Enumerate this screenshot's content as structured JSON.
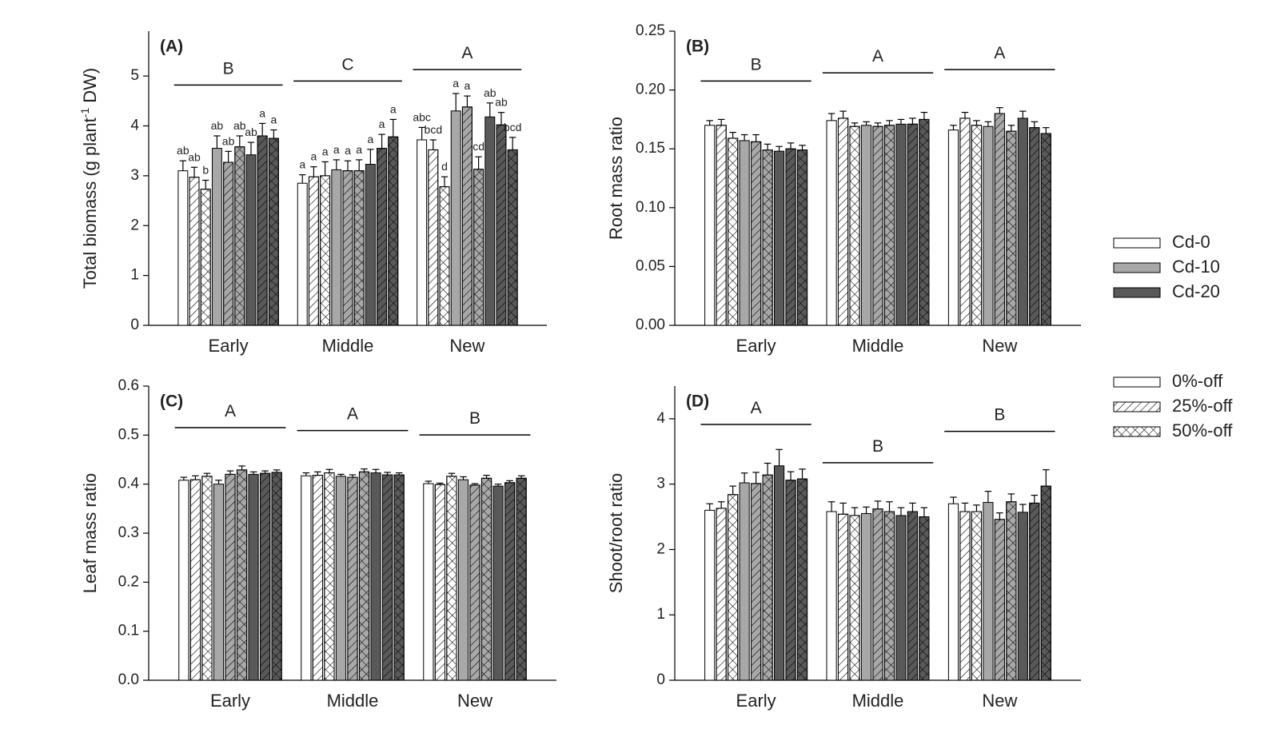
{
  "legend": {
    "colors": [
      {
        "name": "Cd-0",
        "color": "#ffffff"
      },
      {
        "name": "Cd-10",
        "color": "#a8a8a8"
      },
      {
        "name": "Cd-20",
        "color": "#595959"
      }
    ],
    "patterns": [
      {
        "name": "0%-off",
        "pattern": "none"
      },
      {
        "name": "25%-off",
        "pattern": "hatch"
      },
      {
        "name": "50%-off",
        "pattern": "cross"
      }
    ]
  },
  "chart_data": [
    {
      "type": "bar",
      "panel_label": "(A)",
      "ylabel": "Total biomass (g plant",
      "ylabel_sup": "-1",
      "ylabel_end": " DW)",
      "categories": [
        "Early",
        "Middle",
        "New"
      ],
      "group_letters": [
        "B",
        "C",
        "A"
      ],
      "ylim": [
        0,
        5.9
      ],
      "yticks": [
        0,
        1,
        2,
        3,
        4,
        5
      ],
      "series": [
        {
          "color": "#ffffff",
          "pattern": "none",
          "values": [
            3.1,
            2.85,
            3.72
          ],
          "errors": [
            0.2,
            0.17,
            0.25
          ],
          "letters": [
            "ab",
            "a",
            "abc"
          ]
        },
        {
          "color": "#ffffff",
          "pattern": "hatch",
          "values": [
            2.97,
            2.98,
            3.52
          ],
          "errors": [
            0.2,
            0.2,
            0.2
          ],
          "letters": [
            "ab",
            "a",
            "bcd"
          ]
        },
        {
          "color": "#ffffff",
          "pattern": "cross",
          "values": [
            2.73,
            3.0,
            2.78
          ],
          "errors": [
            0.18,
            0.28,
            0.2
          ],
          "letters": [
            "b",
            "a",
            "d"
          ]
        },
        {
          "color": "#a8a8a8",
          "pattern": "none",
          "values": [
            3.55,
            3.12,
            4.3
          ],
          "errors": [
            0.25,
            0.2,
            0.35
          ],
          "letters": [
            "ab",
            "a",
            "a"
          ]
        },
        {
          "color": "#a8a8a8",
          "pattern": "hatch",
          "values": [
            3.27,
            3.1,
            4.38
          ],
          "errors": [
            0.22,
            0.2,
            0.22
          ],
          "letters": [
            "ab",
            "a",
            "a"
          ]
        },
        {
          "color": "#a8a8a8",
          "pattern": "cross",
          "values": [
            3.58,
            3.1,
            3.13
          ],
          "errors": [
            0.22,
            0.22,
            0.25
          ],
          "letters": [
            "ab",
            "a",
            "cd"
          ]
        },
        {
          "color": "#595959",
          "pattern": "none",
          "values": [
            3.42,
            3.23,
            4.18
          ],
          "errors": [
            0.25,
            0.3,
            0.28
          ],
          "letters": [
            "ab",
            "a",
            "ab"
          ]
        },
        {
          "color": "#595959",
          "pattern": "hatch",
          "values": [
            3.8,
            3.55,
            4.02
          ],
          "errors": [
            0.25,
            0.28,
            0.25
          ],
          "letters": [
            "a",
            "a",
            "ab"
          ]
        },
        {
          "color": "#595959",
          "pattern": "cross",
          "values": [
            3.75,
            3.78,
            3.52
          ],
          "errors": [
            0.17,
            0.35,
            0.25
          ],
          "letters": [
            "a",
            "a",
            "bcd"
          ]
        }
      ]
    },
    {
      "type": "bar",
      "panel_label": "(B)",
      "ylabel": "Root mass ratio",
      "categories": [
        "Early",
        "Middle",
        "New"
      ],
      "group_letters": [
        "B",
        "A",
        "A"
      ],
      "ylim": [
        0,
        0.25
      ],
      "yticks": [
        {
          "value": 0,
          "label": "0.00"
        },
        {
          "value": 0.05,
          "label": "0.05"
        },
        {
          "value": 0.1,
          "label": "0.10"
        },
        {
          "value": 0.15,
          "label": "0.15"
        },
        {
          "value": 0.2,
          "label": "0.20"
        },
        {
          "value": 0.25,
          "label": "0.25"
        }
      ],
      "series": [
        {
          "color": "#ffffff",
          "pattern": "none",
          "values": [
            0.17,
            0.174,
            0.166
          ],
          "errors": [
            0.004,
            0.006,
            0.004
          ]
        },
        {
          "color": "#ffffff",
          "pattern": "hatch",
          "values": [
            0.17,
            0.176,
            0.176
          ],
          "errors": [
            0.005,
            0.006,
            0.005
          ]
        },
        {
          "color": "#ffffff",
          "pattern": "cross",
          "values": [
            0.159,
            0.169,
            0.17
          ],
          "errors": [
            0.005,
            0.003,
            0.004
          ]
        },
        {
          "color": "#a8a8a8",
          "pattern": "none",
          "values": [
            0.157,
            0.17,
            0.169
          ],
          "errors": [
            0.005,
            0.003,
            0.004
          ]
        },
        {
          "color": "#a8a8a8",
          "pattern": "hatch",
          "values": [
            0.156,
            0.169,
            0.18
          ],
          "errors": [
            0.006,
            0.003,
            0.005
          ]
        },
        {
          "color": "#a8a8a8",
          "pattern": "cross",
          "values": [
            0.149,
            0.17,
            0.165
          ],
          "errors": [
            0.005,
            0.004,
            0.005
          ]
        },
        {
          "color": "#595959",
          "pattern": "none",
          "values": [
            0.148,
            0.171,
            0.176
          ],
          "errors": [
            0.004,
            0.004,
            0.006
          ]
        },
        {
          "color": "#595959",
          "pattern": "hatch",
          "values": [
            0.15,
            0.171,
            0.168
          ],
          "errors": [
            0.005,
            0.005,
            0.005
          ]
        },
        {
          "color": "#595959",
          "pattern": "cross",
          "values": [
            0.149,
            0.175,
            0.163
          ],
          "errors": [
            0.004,
            0.006,
            0.005
          ]
        }
      ]
    },
    {
      "type": "bar",
      "panel_label": "(C)",
      "ylabel": "Leaf mass ratio",
      "categories": [
        "Early",
        "Middle",
        "New"
      ],
      "group_letters": [
        "A",
        "A",
        "B"
      ],
      "ylim": [
        0,
        0.6
      ],
      "yticks": [
        {
          "value": 0,
          "label": "0.0"
        },
        0.1,
        0.2,
        0.3,
        0.4,
        0.5,
        0.6
      ],
      "series": [
        {
          "color": "#ffffff",
          "pattern": "none",
          "values": [
            0.408,
            0.417,
            0.401
          ],
          "errors": [
            0.006,
            0.006,
            0.005
          ]
        },
        {
          "color": "#ffffff",
          "pattern": "hatch",
          "values": [
            0.409,
            0.418,
            0.399
          ],
          "errors": [
            0.008,
            0.007,
            0.003
          ]
        },
        {
          "color": "#ffffff",
          "pattern": "cross",
          "values": [
            0.416,
            0.423,
            0.416
          ],
          "errors": [
            0.006,
            0.007,
            0.006
          ]
        },
        {
          "color": "#a8a8a8",
          "pattern": "none",
          "values": [
            0.4,
            0.416,
            0.409
          ],
          "errors": [
            0.008,
            0.004,
            0.006
          ]
        },
        {
          "color": "#a8a8a8",
          "pattern": "hatch",
          "values": [
            0.42,
            0.414,
            0.398
          ],
          "errors": [
            0.007,
            0.005,
            0.003
          ]
        },
        {
          "color": "#a8a8a8",
          "pattern": "cross",
          "values": [
            0.429,
            0.425,
            0.412
          ],
          "errors": [
            0.008,
            0.006,
            0.006
          ]
        },
        {
          "color": "#595959",
          "pattern": "none",
          "values": [
            0.42,
            0.423,
            0.396
          ],
          "errors": [
            0.005,
            0.007,
            0.004
          ]
        },
        {
          "color": "#595959",
          "pattern": "hatch",
          "values": [
            0.422,
            0.419,
            0.403
          ],
          "errors": [
            0.005,
            0.005,
            0.004
          ]
        },
        {
          "color": "#595959",
          "pattern": "cross",
          "values": [
            0.424,
            0.419,
            0.412
          ],
          "errors": [
            0.005,
            0.004,
            0.005
          ]
        }
      ]
    },
    {
      "type": "bar",
      "panel_label": "(D)",
      "ylabel": "Shoot/root ratio",
      "categories": [
        "Early",
        "Middle",
        "New"
      ],
      "group_letters": [
        "A",
        "B",
        "B"
      ],
      "ylim": [
        0,
        4.5
      ],
      "yticks": [
        0,
        1,
        2,
        3,
        4
      ],
      "series": [
        {
          "color": "#ffffff",
          "pattern": "none",
          "values": [
            2.6,
            2.58,
            2.7
          ],
          "errors": [
            0.1,
            0.15,
            0.1
          ]
        },
        {
          "color": "#ffffff",
          "pattern": "hatch",
          "values": [
            2.63,
            2.54,
            2.58
          ],
          "errors": [
            0.1,
            0.17,
            0.13
          ]
        },
        {
          "color": "#ffffff",
          "pattern": "cross",
          "values": [
            2.84,
            2.52,
            2.58
          ],
          "errors": [
            0.13,
            0.12,
            0.1
          ]
        },
        {
          "color": "#a8a8a8",
          "pattern": "none",
          "values": [
            3.02,
            2.55,
            2.72
          ],
          "errors": [
            0.15,
            0.1,
            0.17
          ]
        },
        {
          "color": "#a8a8a8",
          "pattern": "hatch",
          "values": [
            3.01,
            2.62,
            2.46
          ],
          "errors": [
            0.17,
            0.12,
            0.1
          ]
        },
        {
          "color": "#a8a8a8",
          "pattern": "cross",
          "values": [
            3.14,
            2.58,
            2.73
          ],
          "errors": [
            0.18,
            0.15,
            0.12
          ]
        },
        {
          "color": "#595959",
          "pattern": "none",
          "values": [
            3.28,
            2.52,
            2.57
          ],
          "errors": [
            0.25,
            0.12,
            0.12
          ]
        },
        {
          "color": "#595959",
          "pattern": "hatch",
          "values": [
            3.06,
            2.58,
            2.71
          ],
          "errors": [
            0.13,
            0.13,
            0.12
          ]
        },
        {
          "color": "#595959",
          "pattern": "cross",
          "values": [
            3.08,
            2.5,
            2.97
          ],
          "errors": [
            0.15,
            0.14,
            0.25
          ]
        }
      ]
    }
  ]
}
